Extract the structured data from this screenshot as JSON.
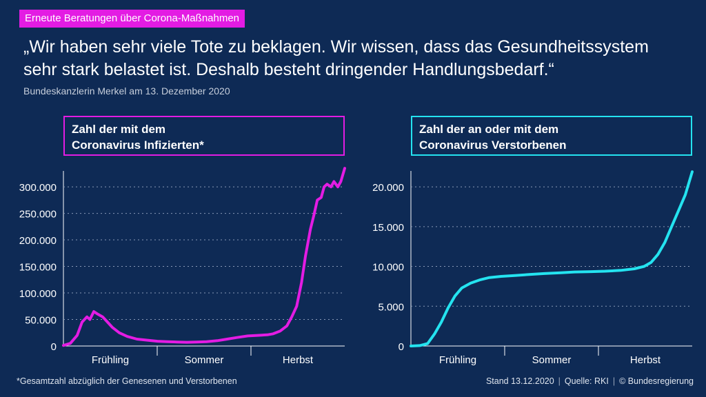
{
  "header": {
    "tag": "Erneute Beratungen über Corona-Maßnahmen",
    "quote_line1": "„Wir haben sehr viele Tote zu beklagen. Wir wissen, dass das Gesundheitssystem",
    "quote_line2": "sehr stark belastet ist. Deshalb besteht dringender Handlungsbedarf.“",
    "attribution": "Bundeskanzlerin Merkel am 13. Dezember 2020"
  },
  "footer": {
    "footnote": "*Gesamtzahl abzüglich der Genesenen und Verstorbenen",
    "stand": "Stand 13.12.2020",
    "quelle": "Quelle: RKI",
    "copyright": "© Bundesregierung"
  },
  "colors": {
    "background": "#0e2a55",
    "infected": "#e31ce3",
    "deceased": "#24e3f0",
    "tag": "#e31ce3"
  },
  "chart_data": [
    {
      "type": "line",
      "title_line1": "Zahl der mit dem",
      "title_line2": "Coronavirus Infizierten*",
      "categories": [
        "Frühling",
        "Sommer",
        "Herbst"
      ],
      "ylim": [
        0,
        330000
      ],
      "yticks": [
        0,
        50000,
        100000,
        150000,
        200000,
        250000,
        300000
      ],
      "ytick_labels": [
        "0",
        "50.000",
        "100.000",
        "150.000",
        "200.000",
        "250.000",
        "300.000"
      ],
      "grid": true,
      "series": [
        {
          "x": [
            "2020-03-01",
            "2020-03-08",
            "2020-03-15",
            "2020-03-20",
            "2020-03-25",
            "2020-03-28",
            "2020-04-01",
            "2020-04-05",
            "2020-04-10",
            "2020-04-15",
            "2020-04-20",
            "2020-04-27",
            "2020-05-05",
            "2020-05-15",
            "2020-05-25",
            "2020-06-05",
            "2020-06-15",
            "2020-06-25",
            "2020-07-05",
            "2020-07-15",
            "2020-07-25",
            "2020-08-05",
            "2020-08-15",
            "2020-08-25",
            "2020-09-05",
            "2020-09-15",
            "2020-09-25",
            "2020-10-01",
            "2020-10-08",
            "2020-10-15",
            "2020-10-20",
            "2020-10-25",
            "2020-10-30",
            "2020-11-03",
            "2020-11-08",
            "2020-11-12",
            "2020-11-15",
            "2020-11-19",
            "2020-11-22",
            "2020-11-25",
            "2020-11-29",
            "2020-12-02",
            "2020-12-06",
            "2020-12-09",
            "2020-12-13"
          ],
          "values": [
            1000,
            5000,
            20000,
            45000,
            55000,
            50000,
            65000,
            60000,
            55000,
            45000,
            35000,
            25000,
            18000,
            13000,
            11000,
            9000,
            8000,
            7500,
            7000,
            7500,
            8000,
            10000,
            13000,
            16000,
            19000,
            20000,
            21000,
            23000,
            28000,
            38000,
            55000,
            75000,
            120000,
            170000,
            220000,
            250000,
            275000,
            280000,
            300000,
            305000,
            300000,
            310000,
            300000,
            310000,
            335000
          ]
        }
      ]
    },
    {
      "type": "line",
      "title_line1": "Zahl der an oder mit dem",
      "title_line2": "Coronavirus Verstorbenen",
      "categories": [
        "Frühling",
        "Sommer",
        "Herbst"
      ],
      "ylim": [
        0,
        22000
      ],
      "yticks": [
        0,
        5000,
        10000,
        15000,
        20000
      ],
      "ytick_labels": [
        "0",
        "5.000",
        "10.000",
        "15.000",
        "20.000"
      ],
      "grid": true,
      "series": [
        {
          "x": [
            "2020-03-01",
            "2020-03-10",
            "2020-03-18",
            "2020-03-25",
            "2020-04-01",
            "2020-04-08",
            "2020-04-15",
            "2020-04-22",
            "2020-05-01",
            "2020-05-10",
            "2020-05-20",
            "2020-06-01",
            "2020-06-15",
            "2020-07-01",
            "2020-07-15",
            "2020-08-01",
            "2020-08-15",
            "2020-09-01",
            "2020-09-15",
            "2020-10-01",
            "2020-10-15",
            "2020-10-25",
            "2020-11-01",
            "2020-11-08",
            "2020-11-15",
            "2020-11-22",
            "2020-11-29",
            "2020-12-06",
            "2020-12-13"
          ],
          "values": [
            0,
            50,
            300,
            1500,
            3000,
            4800,
            6300,
            7300,
            7900,
            8300,
            8600,
            8750,
            8850,
            9000,
            9100,
            9200,
            9300,
            9350,
            9400,
            9500,
            9700,
            10000,
            10500,
            11500,
            13000,
            15000,
            17000,
            19000,
            21900
          ]
        }
      ]
    }
  ]
}
